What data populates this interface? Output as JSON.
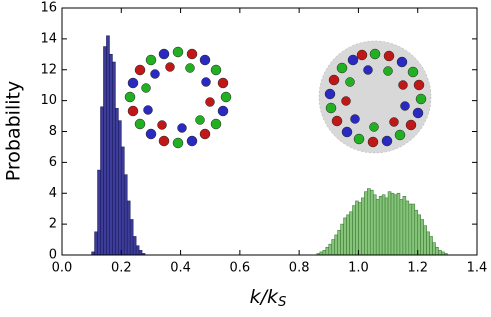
{
  "chart_data": {
    "type": "histogram",
    "ylabel": "Probability",
    "xlabel": "k/k",
    "xlabel_sub": "S",
    "xlim": [
      0.0,
      1.4
    ],
    "xticks": [
      {
        "value": 0.0,
        "label": "0.0"
      },
      {
        "value": 0.2,
        "label": "0.2"
      },
      {
        "value": 0.4,
        "label": "0.4"
      },
      {
        "value": 0.6,
        "label": "0.6"
      },
      {
        "value": 0.8,
        "label": "0.8"
      },
      {
        "value": 1.0,
        "label": "1.0"
      },
      {
        "value": 1.2,
        "label": "1.2"
      },
      {
        "value": 1.4,
        "label": "1.4"
      }
    ],
    "ylim": [
      0,
      16
    ],
    "yticks": [
      0,
      2,
      4,
      6,
      8,
      10,
      12,
      14,
      16
    ],
    "grid": false,
    "series": [
      {
        "color": "#3d3d99",
        "edge": "#1c1c5e",
        "bins": [
          0.1,
          0.11,
          0.12,
          0.13,
          0.14,
          0.15,
          0.16,
          0.17,
          0.18,
          0.19,
          0.2,
          0.21,
          0.22,
          0.23,
          0.24,
          0.25,
          0.26,
          0.27,
          0.28
        ],
        "values": [
          0.2,
          1.5,
          5.5,
          9.6,
          13.5,
          14.2,
          13.0,
          12.5,
          9.5,
          8.7,
          7.0,
          5.2,
          3.5,
          2.3,
          1.2,
          0.6,
          0.3,
          0.1
        ]
      },
      {
        "color": "#86c47a",
        "edge": "#3f7f3a",
        "bins": [
          0.86,
          0.87,
          0.88,
          0.89,
          0.9,
          0.91,
          0.92,
          0.93,
          0.94,
          0.95,
          0.96,
          0.97,
          0.98,
          0.99,
          1.0,
          1.01,
          1.02,
          1.03,
          1.04,
          1.05,
          1.06,
          1.07,
          1.08,
          1.09,
          1.1,
          1.11,
          1.12,
          1.13,
          1.14,
          1.15,
          1.16,
          1.17,
          1.18,
          1.19,
          1.2,
          1.21,
          1.22,
          1.23,
          1.24,
          1.25,
          1.26,
          1.27,
          1.28,
          1.29,
          1.3
        ],
        "values": [
          0.1,
          0.2,
          0.3,
          0.5,
          0.7,
          1.0,
          1.3,
          1.6,
          2.0,
          2.4,
          2.6,
          2.8,
          3.2,
          3.5,
          3.4,
          3.7,
          4.1,
          4.3,
          4.2,
          3.9,
          3.6,
          3.8,
          3.9,
          3.7,
          4.1,
          4.0,
          3.9,
          4.0,
          3.6,
          3.8,
          3.5,
          3.3,
          3.3,
          2.9,
          2.6,
          2.3,
          1.9,
          1.5,
          1.2,
          0.8,
          0.5,
          0.3,
          0.2,
          0.1
        ]
      }
    ]
  }
}
